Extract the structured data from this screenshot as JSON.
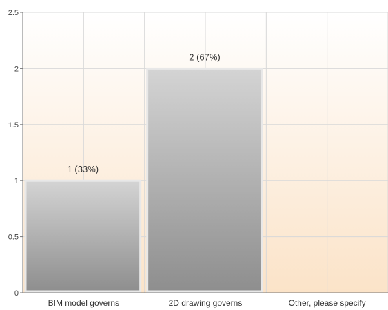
{
  "chart_data": {
    "type": "bar",
    "categories": [
      "BIM model governs",
      "2D drawing governs",
      "Other, please specify"
    ],
    "values": [
      1,
      2,
      0
    ],
    "data_labels": [
      "1 (33%)",
      "2 (67%)",
      ""
    ],
    "y_ticks": [
      "0",
      "0.5",
      "1",
      "1.5",
      "2",
      "2.5"
    ],
    "y_tick_values": [
      0,
      0.5,
      1,
      1.5,
      2,
      2.5
    ],
    "ylim": [
      0,
      2.5
    ],
    "title": "",
    "xlabel": "",
    "ylabel": "",
    "grid": true,
    "legend": "none",
    "colors": {
      "bar_top": "#d4d4d4",
      "bar_bottom": "#8e8e8e",
      "bar_border": "#e8e8e8",
      "plot_bg_top": "#ffffff",
      "plot_bg_bottom": "#fbe3c8",
      "grid": "#d8d8d8",
      "axis": "#777777"
    }
  }
}
